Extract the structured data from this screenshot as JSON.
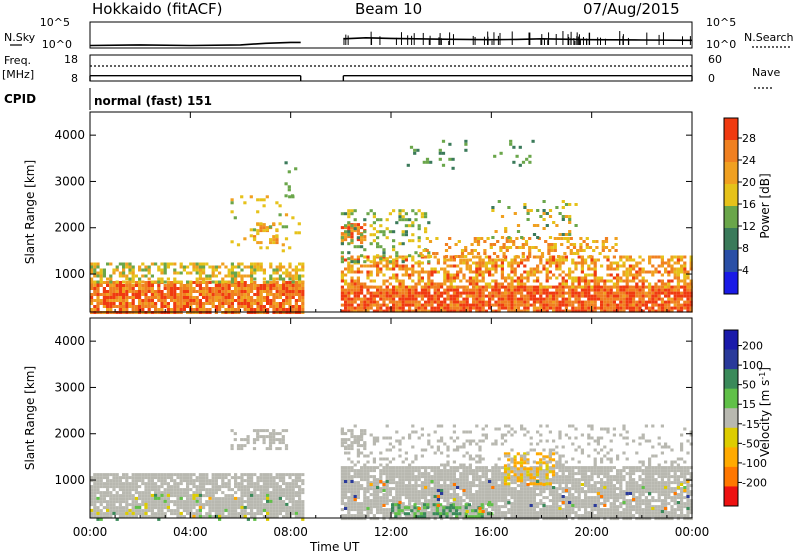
{
  "header": {
    "station": "Hokkaido (fitACF)",
    "beam": "Beam 10",
    "date": "07/Aug/2015"
  },
  "top_panels": {
    "nsky_label": "N.Sky",
    "nsky_left_ticks": [
      "10^5",
      "10^0"
    ],
    "nsky_right_ticks": [
      "10^5",
      "10^0"
    ],
    "nsearch_label": "N.Search",
    "freq_label_1": "Freq.",
    "freq_label_2": "[MHz]",
    "freq_ticks": [
      "18",
      "8"
    ],
    "nave_ticks": [
      "60",
      "0"
    ],
    "nave_label": "Nave",
    "cpid_label": "CPID",
    "cpid_value": "normal (fast) 151"
  },
  "x_axis": {
    "title": "Time UT",
    "ticks": [
      "00:00",
      "04:00",
      "08:00",
      "12:00",
      "16:00",
      "20:00",
      "00:00"
    ]
  },
  "colors": {
    "power": [
      "#1a1ae6",
      "#2a4fa6",
      "#3a7a5a",
      "#6aa64a",
      "#e6c21a",
      "#f0a020",
      "#f08020",
      "#f03a10"
    ],
    "velocity_neg": [
      "#ee1111",
      "#ff7700",
      "#ffaa00",
      "#ddcc00"
    ],
    "velocity_pos": [
      "#60c048",
      "#3a8a5a",
      "#2a3a9a",
      "#1a1aaa"
    ],
    "ground_scatter": "#b8b8b0"
  },
  "chart_data": [
    {
      "type": "line",
      "title": "N.Sky / N.Search",
      "x_range_hours": [
        0,
        24
      ],
      "y_scale": "log",
      "ylim": [
        1,
        100000
      ],
      "data_gap_hours": [
        8.5,
        10.0
      ],
      "series": [
        {
          "name": "N.Sky",
          "x": [
            0,
            2,
            4,
            6,
            7,
            8,
            8.4,
            10.1,
            11,
            12,
            14,
            16,
            17,
            18,
            20,
            22,
            24
          ],
          "values": [
            3,
            4,
            3,
            4,
            8,
            12,
            12,
            60,
            90,
            70,
            50,
            40,
            45,
            60,
            40,
            35,
            30
          ]
        },
        {
          "name": "N.Search",
          "x": [
            0,
            24
          ],
          "values": [
            1,
            1
          ]
        }
      ]
    },
    {
      "type": "line",
      "title": "Freq / Nave",
      "x_range_hours": [
        0,
        24
      ],
      "ylim": [
        8,
        18
      ],
      "data_gap_hours": [
        8.5,
        10.0
      ],
      "series": [
        {
          "name": "Freq.",
          "x": [
            0,
            8.4,
            10.1,
            24
          ],
          "values": [
            10.8,
            10.8,
            10.8,
            10.8
          ]
        },
        {
          "name": "Nave",
          "x": [
            0,
            8.4,
            10.1,
            24
          ],
          "values": [
            12,
            12,
            12,
            12
          ]
        }
      ]
    },
    {
      "type": "heatmap",
      "title": "Power",
      "xlabel": "Time UT",
      "ylabel": "Slant Range [km]",
      "ylim": [
        180,
        4500
      ],
      "x_range_hours": [
        0,
        24
      ],
      "y_ticks": [
        "1000",
        "2000",
        "3000",
        "4000"
      ],
      "colorbar": {
        "label": "Power [dB]",
        "ticks": [
          "28",
          "24",
          "20",
          "16",
          "12",
          "8",
          "4"
        ],
        "range": [
          0,
          30
        ]
      },
      "regions": [
        {
          "t": [
            0.0,
            8.5
          ],
          "r": [
            180,
            850
          ],
          "v": [
            20,
            30
          ],
          "d": 0.88
        },
        {
          "t": [
            0.0,
            8.5
          ],
          "r": [
            850,
            1250
          ],
          "v": [
            12,
            22
          ],
          "d": 0.55
        },
        {
          "t": [
            6.5,
            7.4
          ],
          "r": [
            1700,
            2100
          ],
          "v": [
            16,
            24
          ],
          "d": 0.5
        },
        {
          "t": [
            5.6,
            8.4
          ],
          "r": [
            1500,
            2700
          ],
          "v": [
            12,
            20
          ],
          "d": 0.12
        },
        {
          "t": [
            7.5,
            8.2
          ],
          "r": [
            2700,
            3500
          ],
          "v": [
            8,
            16
          ],
          "d": 0.06
        },
        {
          "t": [
            10.0,
            24.0
          ],
          "r": [
            180,
            750
          ],
          "v": [
            22,
            30
          ],
          "d": 0.9
        },
        {
          "t": [
            10.0,
            24.0
          ],
          "r": [
            750,
            1400
          ],
          "v": [
            16,
            28
          ],
          "d": 0.55
        },
        {
          "t": [
            10.0,
            11.0
          ],
          "r": [
            1700,
            2100
          ],
          "v": [
            20,
            28
          ],
          "d": 0.7
        },
        {
          "t": [
            10.0,
            13.5
          ],
          "r": [
            1250,
            2400
          ],
          "v": [
            10,
            18
          ],
          "d": 0.25
        },
        {
          "t": [
            13.0,
            21.0
          ],
          "r": [
            1400,
            1800
          ],
          "v": [
            16,
            26
          ],
          "d": 0.35
        },
        {
          "t": [
            16.0,
            19.5
          ],
          "r": [
            1800,
            2600
          ],
          "v": [
            10,
            22
          ],
          "d": 0.18
        },
        {
          "t": [
            12.5,
            18.0
          ],
          "r": [
            3300,
            3900
          ],
          "v": [
            8,
            14
          ],
          "d": 0.05
        }
      ]
    },
    {
      "type": "heatmap",
      "title": "Velocity",
      "xlabel": "Time UT",
      "ylabel": "Slant Range [km]",
      "ylim": [
        180,
        4500
      ],
      "x_range_hours": [
        0,
        24
      ],
      "y_ticks": [
        "1000",
        "2000",
        "3000",
        "4000"
      ],
      "colorbar": {
        "label": "Velocity [m s-1]",
        "ticks": [
          "200",
          "100",
          "50",
          "15",
          "-15",
          "-50",
          "-100",
          "-200"
        ],
        "range": [
          -250,
          250
        ]
      },
      "regions": [
        {
          "t": [
            0.0,
            8.5
          ],
          "r": [
            180,
            1150
          ],
          "v": [
            -15,
            15
          ],
          "d": 0.85,
          "gs": true
        },
        {
          "t": [
            0.0,
            8.5
          ],
          "r": [
            180,
            700
          ],
          "v": [
            -60,
            80
          ],
          "d": 0.1
        },
        {
          "t": [
            5.6,
            7.8
          ],
          "r": [
            1650,
            2100
          ],
          "v": [
            -15,
            15
          ],
          "d": 0.45,
          "gs": true
        },
        {
          "t": [
            10.0,
            24.0
          ],
          "r": [
            180,
            1300
          ],
          "v": [
            -15,
            15
          ],
          "d": 0.85,
          "gs": true
        },
        {
          "t": [
            12.0,
            16.0
          ],
          "r": [
            180,
            500
          ],
          "v": [
            20,
            80
          ],
          "d": 0.55
        },
        {
          "t": [
            16.5,
            18.5
          ],
          "r": [
            950,
            1600
          ],
          "v": [
            -90,
            -40
          ],
          "d": 0.45
        },
        {
          "t": [
            10.0,
            11.0
          ],
          "r": [
            1650,
            2100
          ],
          "v": [
            -15,
            15
          ],
          "d": 0.6,
          "gs": true
        },
        {
          "t": [
            10.0,
            24.0
          ],
          "r": [
            1300,
            2200
          ],
          "v": [
            -15,
            15
          ],
          "d": 0.2,
          "gs": true
        },
        {
          "t": [
            10.0,
            24.0
          ],
          "r": [
            300,
            1000
          ],
          "v": [
            -200,
            200
          ],
          "d": 0.06
        }
      ]
    }
  ]
}
